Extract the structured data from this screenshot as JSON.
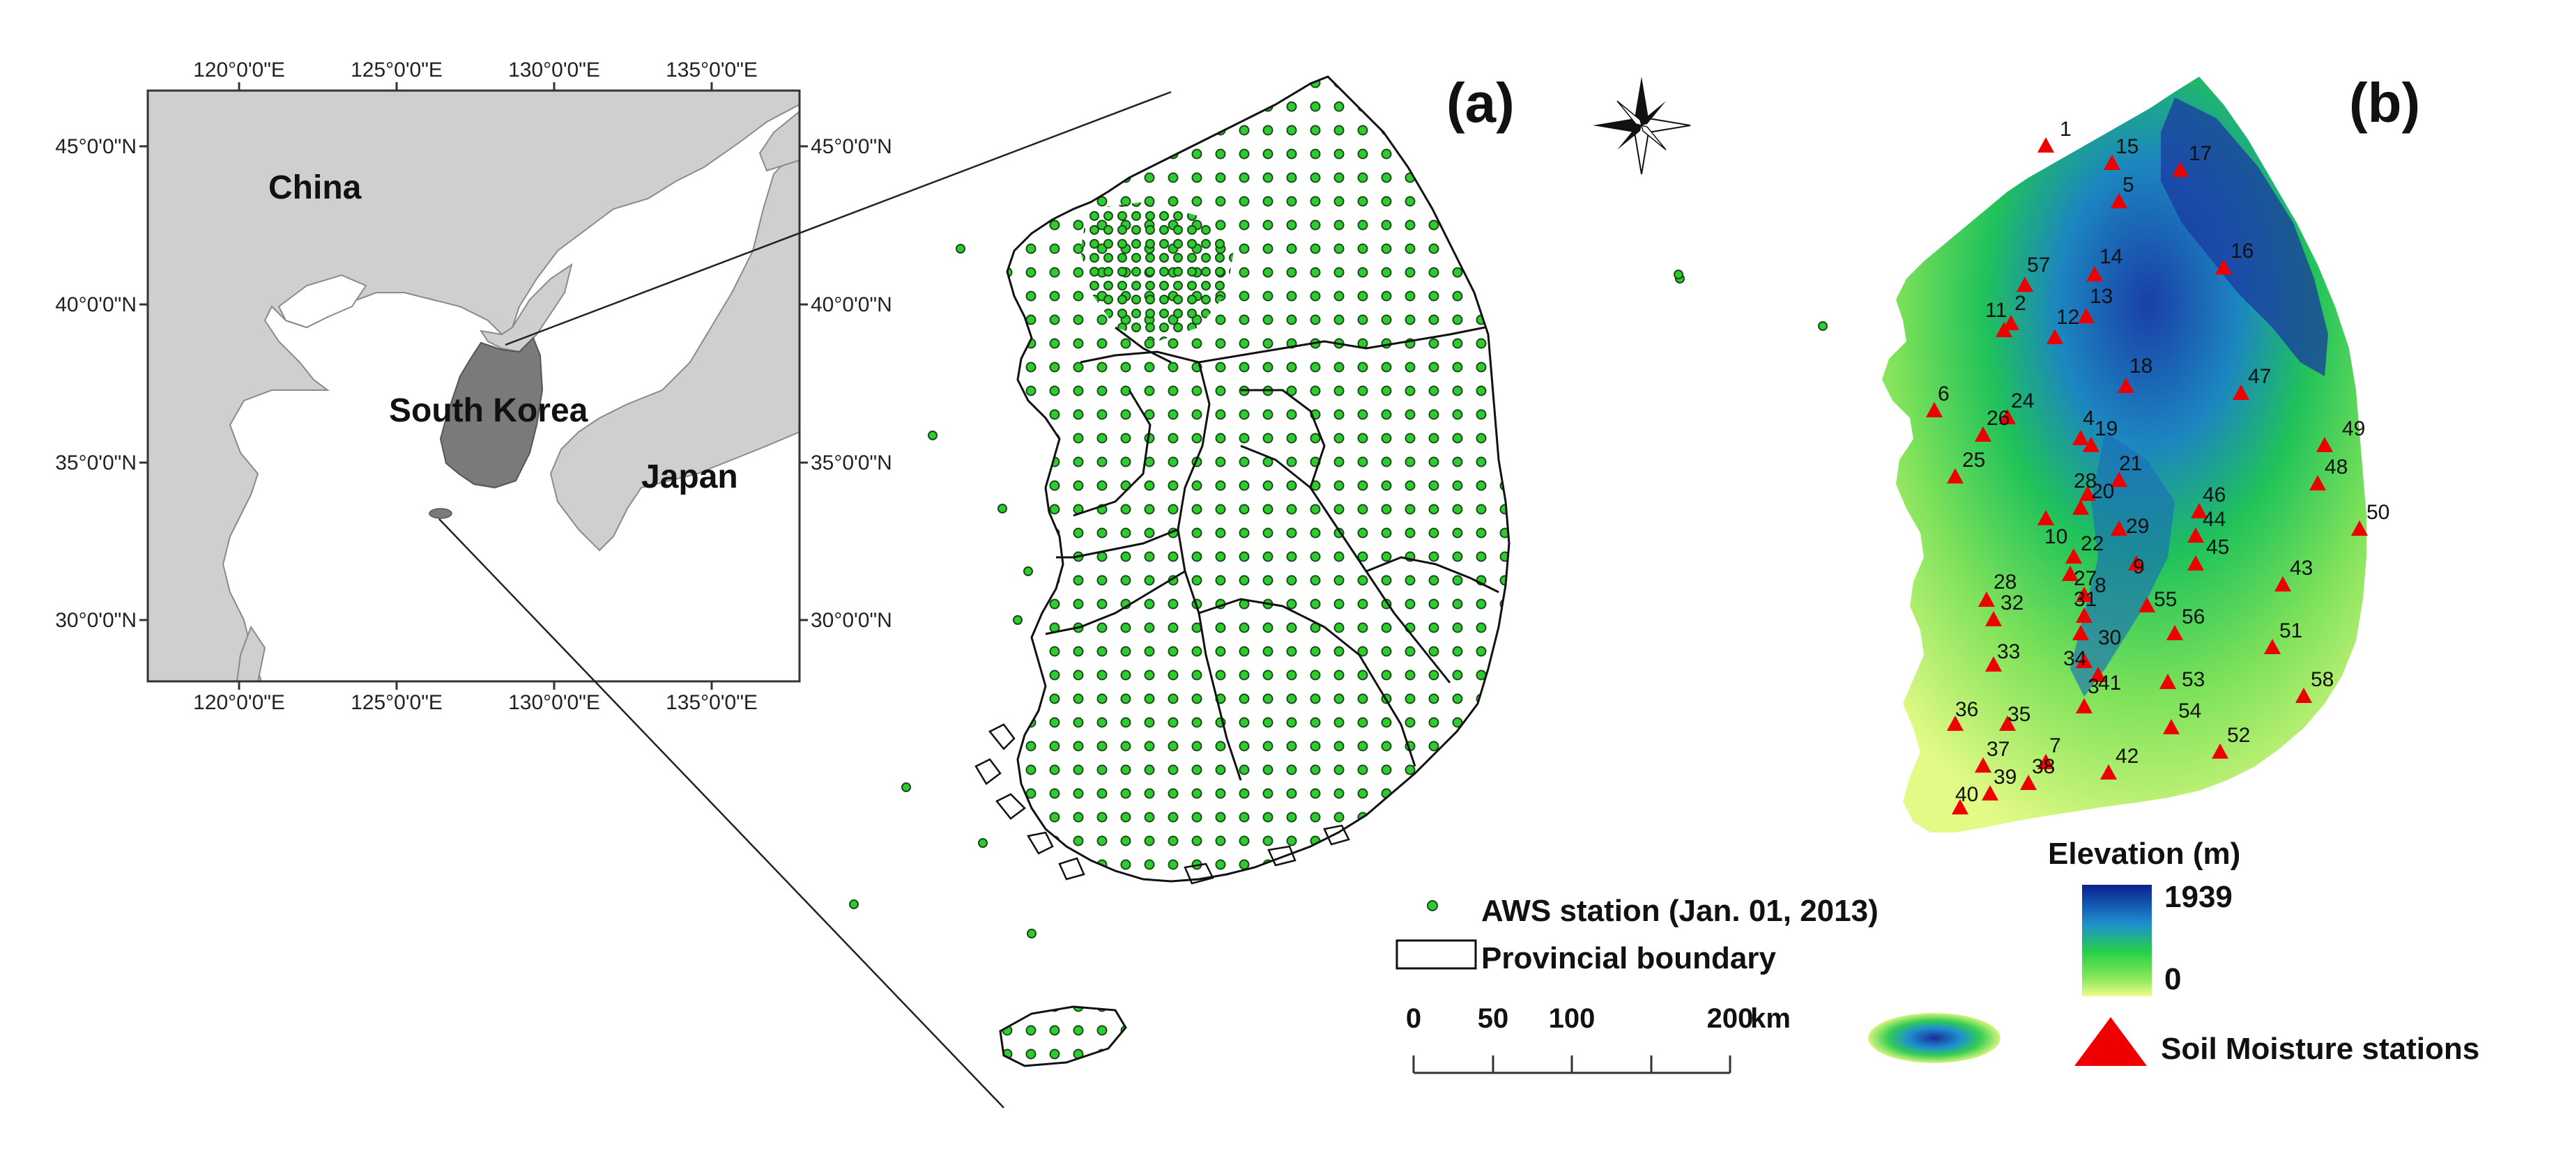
{
  "panels": {
    "a": "(a)",
    "b": "(b)"
  },
  "inset": {
    "lon_labels": [
      "120°0'0\"E",
      "125°0'0\"E",
      "130°0'0\"E",
      "135°0'0\"E"
    ],
    "lat_labels": [
      "45°0'0\"N",
      "40°0'0\"N",
      "35°0'0\"N",
      "30°0'0\"N"
    ],
    "countries": {
      "china": "China",
      "south_korea": "South Korea",
      "japan": "Japan"
    }
  },
  "legend_a": {
    "aws": "AWS station (Jan. 01, 2013)",
    "boundary": "Provincial boundary",
    "scale_labels": [
      "0",
      "50",
      "100",
      "200"
    ],
    "scale_unit": "km"
  },
  "legend_b": {
    "title": "Elevation (m)",
    "max": "1939",
    "min": "0",
    "soil": "Soil Moisture stations"
  },
  "colors": {
    "aws_fill": "#2ecc2e",
    "station_marker": "#ee0000",
    "elev_low": "#e7f98c",
    "elev_mid": "#22c84a",
    "elev_high": "#1c2f9c"
  },
  "stations": [
    {
      "id": "1"
    },
    {
      "id": "15"
    },
    {
      "id": "17"
    },
    {
      "id": "5"
    },
    {
      "id": "57"
    },
    {
      "id": "14"
    },
    {
      "id": "16"
    },
    {
      "id": "11"
    },
    {
      "id": "2"
    },
    {
      "id": "13"
    },
    {
      "id": "12"
    },
    {
      "id": "18"
    },
    {
      "id": "47"
    },
    {
      "id": "6"
    },
    {
      "id": "24"
    },
    {
      "id": "26"
    },
    {
      "id": "4"
    },
    {
      "id": "19"
    },
    {
      "id": "49"
    },
    {
      "id": "25"
    },
    {
      "id": "48"
    },
    {
      "id": "21"
    },
    {
      "id": "28"
    },
    {
      "id": "20"
    },
    {
      "id": "46"
    },
    {
      "id": "50"
    },
    {
      "id": "10"
    },
    {
      "id": "29"
    },
    {
      "id": "44"
    },
    {
      "id": "22"
    },
    {
      "id": "45"
    },
    {
      "id": "9"
    },
    {
      "id": "27"
    },
    {
      "id": "43"
    },
    {
      "id": "28"
    },
    {
      "id": "8"
    },
    {
      "id": "55"
    },
    {
      "id": "32"
    },
    {
      "id": "31"
    },
    {
      "id": "56"
    },
    {
      "id": "30"
    },
    {
      "id": "51"
    },
    {
      "id": "33"
    },
    {
      "id": "34"
    },
    {
      "id": "41"
    },
    {
      "id": "53"
    },
    {
      "id": "58"
    },
    {
      "id": "3"
    },
    {
      "id": "36"
    },
    {
      "id": "54"
    },
    {
      "id": "35"
    },
    {
      "id": "52"
    },
    {
      "id": "37"
    },
    {
      "id": "42"
    },
    {
      "id": "7"
    },
    {
      "id": "38"
    },
    {
      "id": "39"
    },
    {
      "id": "40"
    }
  ]
}
